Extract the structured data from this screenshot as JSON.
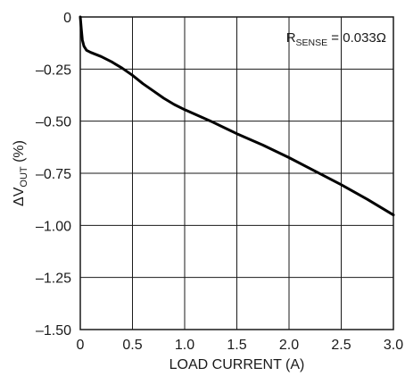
{
  "chart_data": {
    "type": "line",
    "xlabel": "LOAD CURRENT (A)",
    "ylabel": {
      "prefix": "ΔV",
      "sub": "OUT",
      "suffix": " (%)"
    },
    "annotation": {
      "prefix": "R",
      "sub": "SENSE",
      "suffix": " = 0.033Ω"
    },
    "xlim": [
      0,
      3.0
    ],
    "ylim": [
      -1.5,
      0
    ],
    "x_ticks": [
      "0",
      "0.5",
      "1.0",
      "1.5",
      "2.0",
      "2.5",
      "3.0"
    ],
    "y_ticks": [
      "0",
      "–0.25",
      "–0.50",
      "–0.75",
      "–1.00",
      "–1.25",
      "–1.50"
    ],
    "x_tick_values": [
      0,
      0.5,
      1.0,
      1.5,
      2.0,
      2.5,
      3.0
    ],
    "y_tick_values": [
      0,
      -0.25,
      -0.5,
      -0.75,
      -1.0,
      -1.25,
      -1.5
    ],
    "grid": true,
    "series": [
      {
        "points": [
          [
            0.0,
            0.0
          ],
          [
            0.01,
            -0.06
          ],
          [
            0.02,
            -0.11
          ],
          [
            0.035,
            -0.14
          ],
          [
            0.06,
            -0.16
          ],
          [
            0.1,
            -0.17
          ],
          [
            0.2,
            -0.19
          ],
          [
            0.3,
            -0.215
          ],
          [
            0.4,
            -0.245
          ],
          [
            0.5,
            -0.28
          ],
          [
            0.6,
            -0.32
          ],
          [
            0.7,
            -0.355
          ],
          [
            0.8,
            -0.39
          ],
          [
            0.9,
            -0.42
          ],
          [
            1.0,
            -0.445
          ],
          [
            1.25,
            -0.5
          ],
          [
            1.5,
            -0.56
          ],
          [
            1.75,
            -0.615
          ],
          [
            2.0,
            -0.675
          ],
          [
            2.25,
            -0.74
          ],
          [
            2.5,
            -0.805
          ],
          [
            2.75,
            -0.875
          ],
          [
            3.0,
            -0.95
          ]
        ]
      }
    ]
  }
}
